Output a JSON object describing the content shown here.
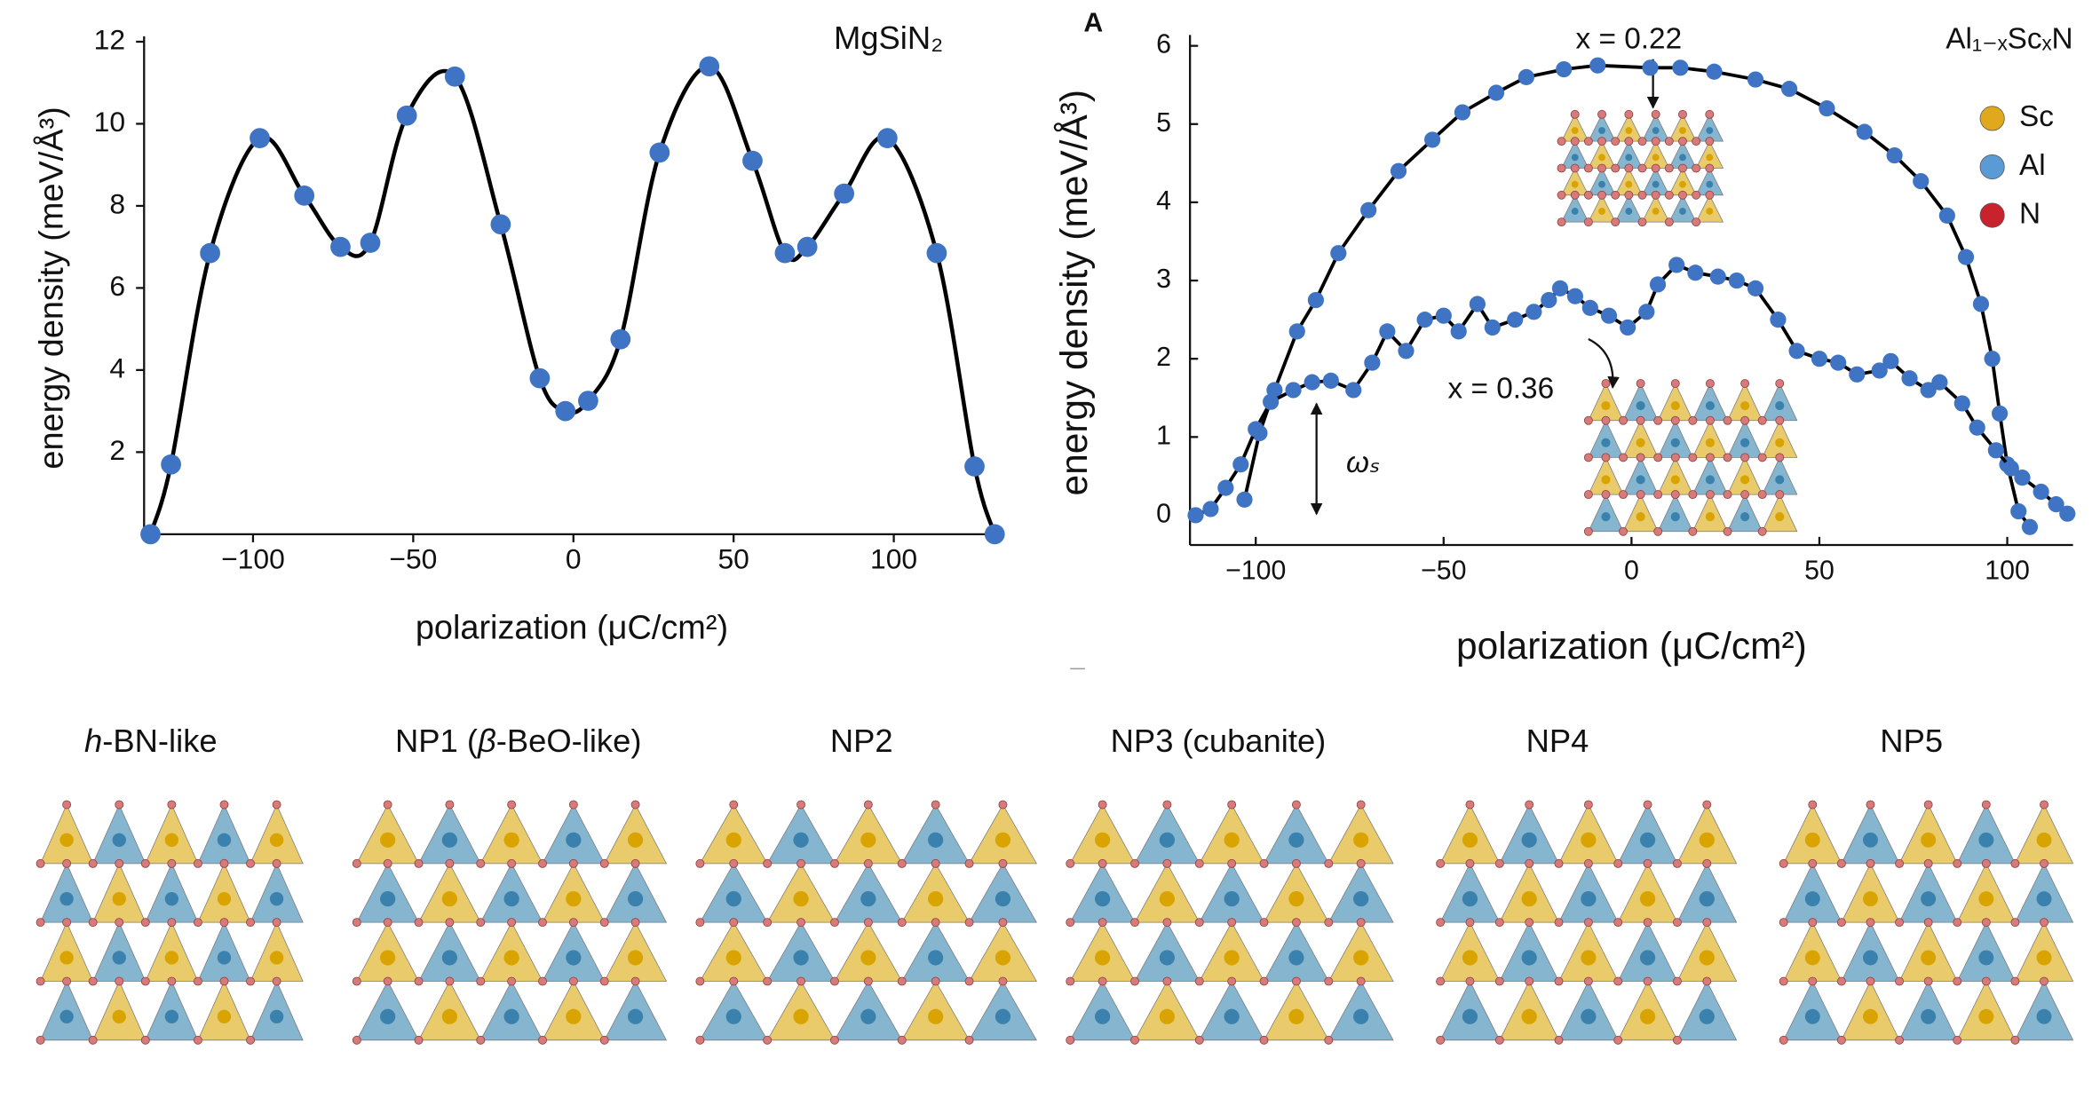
{
  "chart_data": [
    {
      "type": "line",
      "smooth": true,
      "marker_color": "#3f73c4",
      "line_color": "#000000",
      "annotation": "MgSiN₂",
      "xlabel": "polarization (μC/cm²)",
      "ylabel": "energy density (meV/Å³)",
      "x": [
        -132,
        -125.6,
        -113.4,
        -97.9,
        -84,
        -72.7,
        -63.4,
        -52,
        -37,
        -22.7,
        -10.5,
        -2.5,
        4.6,
        14.7,
        26.9,
        42.4,
        55.9,
        66,
        73,
        84.5,
        98,
        113.4,
        125.2,
        131.5
      ],
      "values": [
        0,
        1.7,
        6.85,
        9.65,
        8.25,
        7.0,
        7.1,
        10.2,
        11.15,
        7.55,
        3.8,
        3.0,
        3.25,
        4.75,
        9.3,
        11.4,
        9.1,
        6.85,
        7.0,
        8.3,
        9.65,
        6.85,
        1.65,
        0
      ],
      "xlim": [
        -134,
        133
      ],
      "ylim": [
        0,
        12
      ],
      "xticks": [
        {
          "value": -100,
          "label": "−100"
        },
        {
          "value": -50,
          "label": "−50"
        },
        0,
        50,
        100
      ],
      "yticks": [
        2,
        4,
        6,
        8,
        10,
        12
      ]
    },
    {
      "type": "line",
      "smooth": false,
      "panel_label": "A",
      "title": "Al₁₋ₓScₓN",
      "xlabel": "polarization (μC/cm²)",
      "ylabel": "energy density (meV/Å³)",
      "annotation": "ωₛ",
      "atom_legend": [
        {
          "label": "Sc",
          "color": "#e0a81c"
        },
        {
          "label": "Al",
          "color": "#5b9bd5"
        },
        {
          "label": "N",
          "color": "#c8232c"
        }
      ],
      "series": [
        {
          "name": "x = 0.22",
          "color": "#3f73c4",
          "x": [
            -103,
            -99,
            -95,
            -89,
            -84,
            -78,
            -70,
            -62,
            -53,
            -45,
            -36,
            -28,
            -18,
            -9,
            5,
            13,
            22,
            33,
            42,
            52,
            62,
            70,
            77,
            84,
            89,
            93,
            96,
            98,
            100,
            103,
            106
          ],
          "values": [
            0.2,
            1.05,
            1.6,
            2.35,
            2.75,
            3.35,
            3.9,
            4.4,
            4.8,
            5.15,
            5.4,
            5.6,
            5.7,
            5.75,
            5.72,
            5.72,
            5.67,
            5.57,
            5.45,
            5.2,
            4.9,
            4.6,
            4.27,
            3.83,
            3.3,
            2.7,
            2.0,
            1.3,
            0.65,
            0.05,
            -0.15
          ]
        },
        {
          "name": "x = 0.36",
          "color": "#3f73c4",
          "x": [
            -116,
            -112,
            -108,
            -104,
            -100,
            -96,
            -90,
            -85,
            -80,
            -74,
            -69,
            -65,
            -60,
            -55,
            -50,
            -46,
            -41,
            -37,
            -31,
            -26,
            -22,
            -19,
            -15,
            -11,
            -6,
            -1,
            4,
            7,
            12,
            17,
            23,
            28,
            33,
            39,
            44,
            50,
            55,
            60,
            66,
            69,
            74,
            79,
            82,
            88,
            92,
            97,
            101,
            104,
            109,
            113,
            116
          ],
          "values": [
            0,
            0.08,
            0.35,
            0.65,
            1.1,
            1.45,
            1.6,
            1.7,
            1.72,
            1.6,
            1.95,
            2.35,
            2.1,
            2.5,
            2.55,
            2.35,
            2.7,
            2.4,
            2.5,
            2.6,
            2.75,
            2.9,
            2.8,
            2.65,
            2.55,
            2.4,
            2.6,
            2.95,
            3.2,
            3.1,
            3.05,
            3.0,
            2.9,
            2.5,
            2.1,
            2.0,
            1.95,
            1.8,
            1.85,
            1.97,
            1.75,
            1.6,
            1.7,
            1.43,
            1.12,
            0.83,
            0.6,
            0.48,
            0.3,
            0.14,
            0.02
          ]
        }
      ],
      "xlim": [
        -117.5,
        117.5
      ],
      "ylim": [
        -0.38,
        6.07
      ],
      "xticks": [
        {
          "value": -100,
          "label": "−100"
        },
        {
          "value": -50,
          "label": "−50"
        },
        0,
        50,
        100
      ],
      "yticks": [
        0,
        1,
        2,
        3,
        4,
        5,
        6
      ]
    }
  ],
  "structures": [
    {
      "label": [
        {
          "text": "h",
          "italic": true
        },
        {
          "text": "-BN-like"
        }
      ]
    },
    {
      "label": [
        {
          "text": "NP1 ("
        },
        {
          "text": "β",
          "italic": true
        },
        {
          "text": "-BeO-like)"
        }
      ]
    },
    {
      "label": [
        {
          "text": "NP2"
        }
      ]
    },
    {
      "label": [
        {
          "text": "NP3 (cubanite)"
        }
      ]
    },
    {
      "label": [
        {
          "text": "NP4"
        }
      ]
    },
    {
      "label": [
        {
          "text": "NP5"
        }
      ]
    }
  ]
}
